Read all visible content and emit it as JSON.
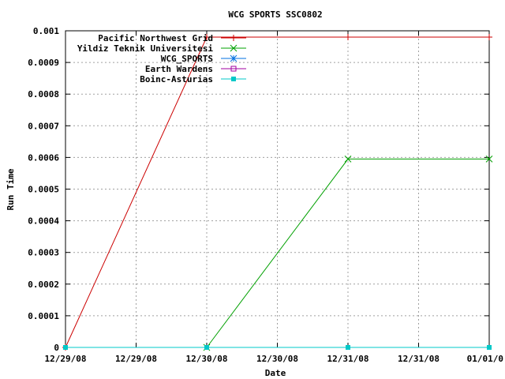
{
  "chart_data": {
    "type": "line",
    "title": "WCG SPORTS SSC0802",
    "xlabel": "Date",
    "ylabel": "Run Time",
    "x_tick_labels": [
      "12/29/08",
      "12/29/08",
      "12/30/08",
      "12/30/08",
      "12/31/08",
      "12/31/08",
      "01/01/0"
    ],
    "y_tick_labels": [
      "0",
      "0.0001",
      "0.0002",
      "0.0003",
      "0.0004",
      "0.0005",
      "0.0006",
      "0.0007",
      "0.0008",
      "0.0009",
      "0.001"
    ],
    "xlim": [
      0,
      3
    ],
    "ylim": [
      0,
      0.001
    ],
    "x_tick_step": 0.5,
    "y_tick_step": 0.0001,
    "grid": true,
    "legend_position": "top-left",
    "x_unit_note": "days from 12/29/08",
    "series": [
      {
        "name": "Pacific Northwest Grid",
        "color": "#cc0000",
        "marker": "plus",
        "x": [
          0,
          1,
          2,
          3
        ],
        "y": [
          0,
          0.00098,
          0.00098,
          0.00098
        ]
      },
      {
        "name": "Yildiz Teknik Universitesi",
        "color": "#00a000",
        "marker": "cross",
        "x": [
          1,
          2,
          3
        ],
        "y": [
          0,
          0.000595,
          0.000595
        ]
      },
      {
        "name": "WCG_SPORTS",
        "color": "#0070e0",
        "marker": "star",
        "x": [],
        "y": []
      },
      {
        "name": "Earth Wardens",
        "color": "#a000a0",
        "marker": "open-square",
        "x": [],
        "y": []
      },
      {
        "name": "Boinc-Asturias",
        "color": "#00c8c8",
        "marker": "filled-square",
        "x": [
          0,
          1,
          2,
          3
        ],
        "y": [
          0,
          0,
          0,
          0
        ]
      }
    ]
  }
}
